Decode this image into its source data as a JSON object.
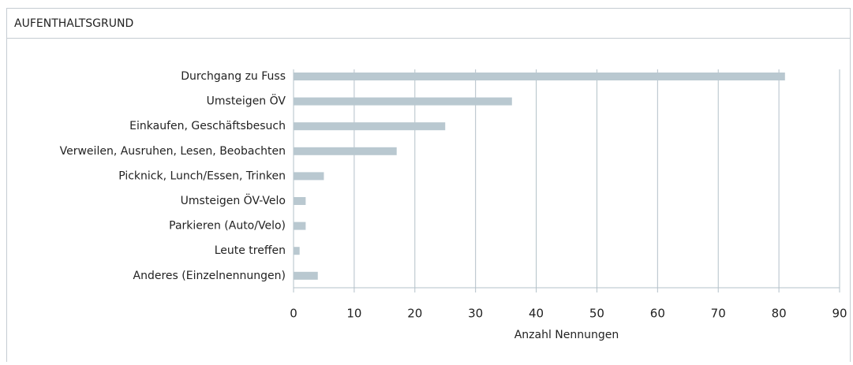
{
  "chart_data": {
    "type": "bar",
    "orientation": "horizontal",
    "title": "AUFENTHALTSGRUND",
    "categories": [
      "Durchgang zu Fuss",
      "Umsteigen ÖV",
      "Einkaufen, Geschäftsbesuch",
      "Verweilen, Ausruhen, Lesen, Beobachten",
      "Picknick, Lunch/Essen, Trinken",
      "Umsteigen ÖV-Velo",
      "Parkieren (Auto/Velo)",
      "Leute treffen",
      "Anderes (Einzelnennungen)"
    ],
    "values": [
      81,
      36,
      25,
      17,
      5,
      2,
      2,
      1,
      4
    ],
    "color": "#b9c8d0",
    "xlabel": "Anzahl Nennungen",
    "xlim": [
      0,
      90
    ],
    "xticks": [
      0,
      10,
      20,
      30,
      40,
      50,
      60,
      70,
      80,
      90
    ],
    "grid": true
  }
}
